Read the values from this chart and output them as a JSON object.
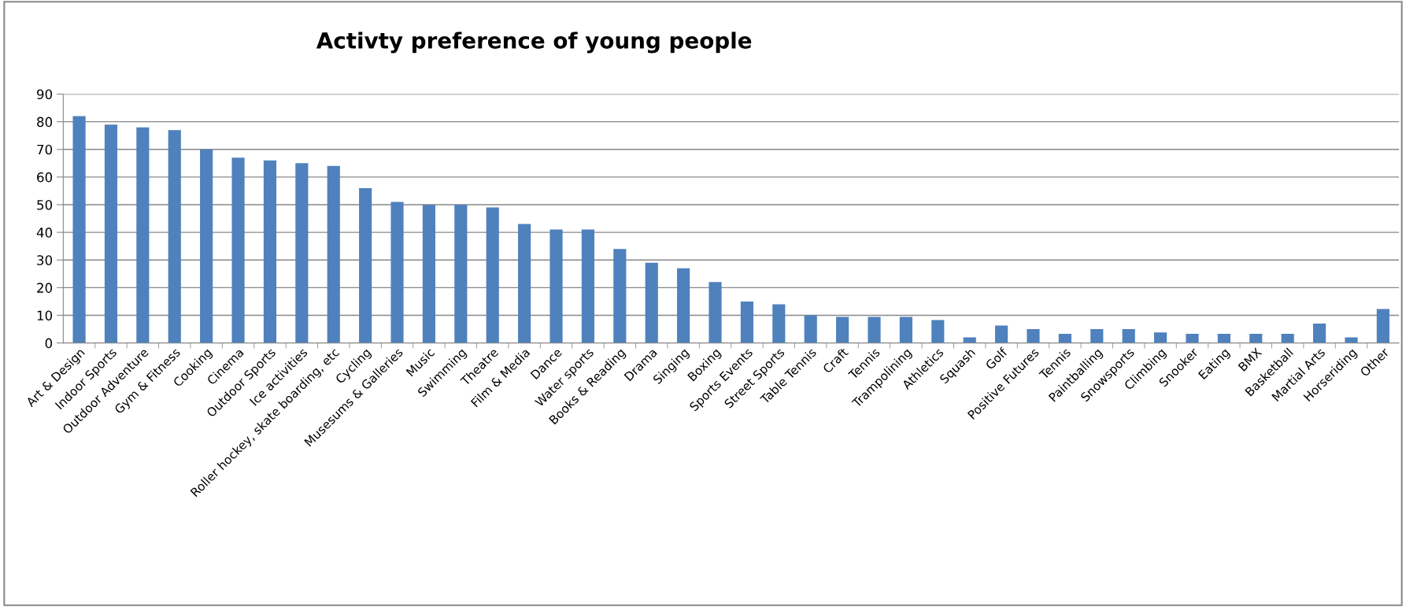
{
  "chart_data": {
    "type": "bar",
    "title": "Activty preference of young people",
    "categories": [
      "Art & Design",
      "Indoor Sports",
      "Outdoor Adventure",
      "Gym & Fitness",
      "Cooking",
      "Cinema",
      "Outdoor Sports",
      "Ice activities",
      "Roller hockey, skate boarding, etc",
      "Cycling",
      "Musesums & Galleries",
      "Music",
      "Swimming",
      "Theatre",
      "Film & Media",
      "Dance",
      "Water sports",
      "Books & Reading",
      "Drama",
      "Singing",
      "Boxing",
      "Sports Events",
      "Street Sports",
      "Table Tennis",
      "Craft",
      "Tennis",
      "Trampolining",
      "Athletics",
      "Squash",
      "Golf",
      "Positive Futures",
      "Tennis",
      "Paintballing",
      "Snowsports",
      "Climbing",
      "Snooker",
      "Eating",
      "BMX",
      "Basketball",
      "Martial Arts",
      "Horseriding",
      "Other"
    ],
    "values": [
      82,
      79,
      78,
      77,
      70,
      67,
      66,
      65,
      64,
      56,
      51,
      50,
      50,
      49,
      43,
      41,
      41,
      34,
      29,
      27,
      22,
      15,
      14,
      10,
      9.4,
      9.4,
      9.4,
      8.3,
      2,
      6.3,
      5,
      3.3,
      5,
      5,
      3.8,
      3.3,
      3.3,
      3.3,
      3.3,
      7,
      2,
      12.3
    ],
    "color": "#4f81bd",
    "ylim": [
      0,
      90
    ],
    "yticks": [
      0,
      10,
      20,
      30,
      40,
      50,
      60,
      70,
      80,
      90
    ],
    "grid": "y"
  }
}
